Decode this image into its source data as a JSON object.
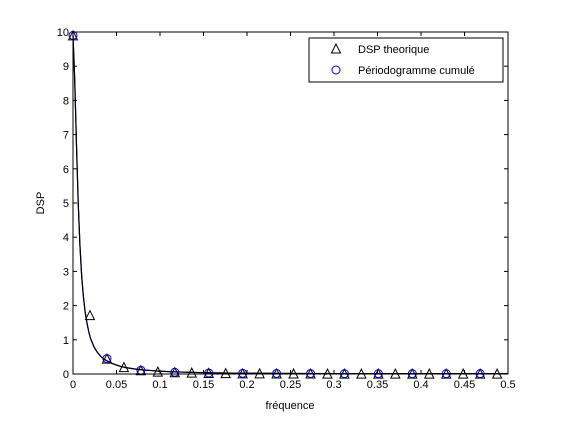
{
  "chart_data": {
    "type": "line",
    "xlabel": "fréquence",
    "ylabel": "DSP",
    "xlim": [
      0,
      0.5
    ],
    "ylim": [
      0,
      10
    ],
    "x_ticks": [
      "0",
      "0.05",
      "0.1",
      "0.15",
      "0.2",
      "0.25",
      "0.3",
      "0.35",
      "0.4",
      "0.45",
      "0.5"
    ],
    "y_ticks": [
      "0",
      "1",
      "2",
      "3",
      "4",
      "5",
      "6",
      "7",
      "8",
      "9",
      "10"
    ],
    "grid": false,
    "legend_position": "top-right",
    "series": [
      {
        "name": "DSP theorique",
        "marker": "triangle",
        "color": "#000000",
        "x": [
          0.0,
          0.0195,
          0.039,
          0.0585,
          0.078,
          0.0975,
          0.117,
          0.1365,
          0.156,
          0.1755,
          0.195,
          0.2145,
          0.234,
          0.2535,
          0.273,
          0.2925,
          0.312,
          0.3315,
          0.351,
          0.3705,
          0.39,
          0.4095,
          0.429,
          0.4485,
          0.468,
          0.4875
        ],
        "y": [
          9.9,
          1.72,
          0.45,
          0.2,
          0.11,
          0.07,
          0.05,
          0.04,
          0.03,
          0.025,
          0.02,
          0.018,
          0.016,
          0.014,
          0.013,
          0.012,
          0.011,
          0.011,
          0.01,
          0.01,
          0.01,
          0.01,
          0.01,
          0.01,
          0.01,
          0.01
        ]
      },
      {
        "name": "Périodogramme cumulé",
        "marker": "circle",
        "color": "#0000cc",
        "x": [
          0.0,
          0.039,
          0.078,
          0.117,
          0.156,
          0.195,
          0.234,
          0.273,
          0.312,
          0.351,
          0.39,
          0.429,
          0.468
        ],
        "y": [
          9.9,
          0.45,
          0.11,
          0.05,
          0.03,
          0.02,
          0.016,
          0.013,
          0.011,
          0.01,
          0.01,
          0.01,
          0.01
        ]
      }
    ],
    "curve": {
      "color": "#000000",
      "x": [
        0.0,
        0.002,
        0.004,
        0.006,
        0.008,
        0.01,
        0.012,
        0.014,
        0.016,
        0.018,
        0.02,
        0.024,
        0.028,
        0.032,
        0.036,
        0.04,
        0.045,
        0.05,
        0.055,
        0.06,
        0.07,
        0.08,
        0.09,
        0.1,
        0.12,
        0.14,
        0.16,
        0.18,
        0.2,
        0.25,
        0.3,
        0.35,
        0.4,
        0.45,
        0.5
      ],
      "y": [
        9.9,
        8.6,
        6.7,
        5.0,
        3.75,
        2.85,
        2.25,
        1.8,
        1.5,
        1.25,
        1.05,
        0.8,
        0.63,
        0.51,
        0.43,
        0.37,
        0.31,
        0.26,
        0.22,
        0.19,
        0.15,
        0.12,
        0.1,
        0.08,
        0.06,
        0.045,
        0.035,
        0.028,
        0.023,
        0.017,
        0.013,
        0.011,
        0.01,
        0.01,
        0.01
      ]
    }
  }
}
